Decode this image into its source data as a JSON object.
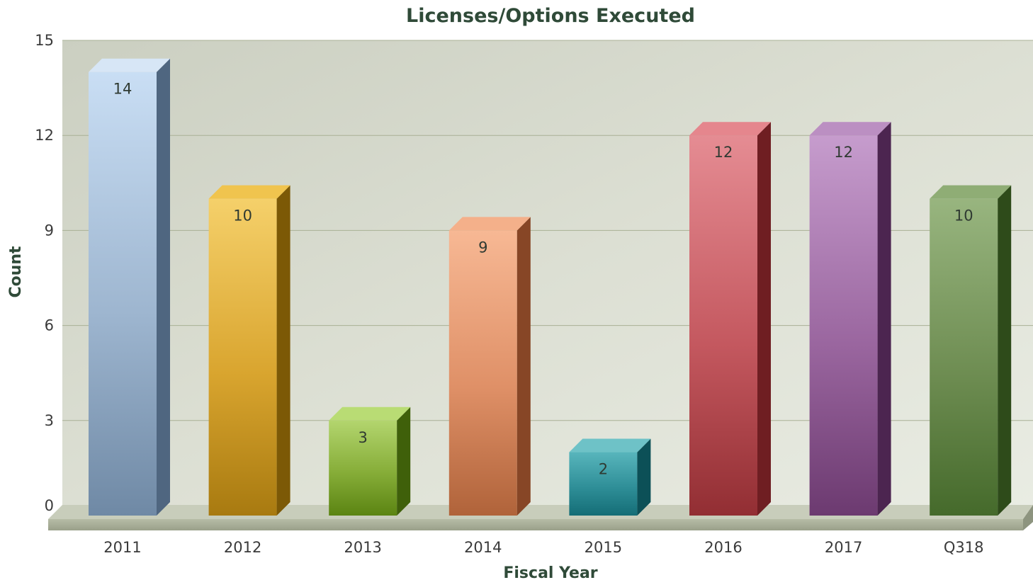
{
  "chart_data": {
    "type": "bar",
    "title": "Licenses/Options Executed",
    "xlabel": "Fiscal Year",
    "ylabel": "Count",
    "categories": [
      "2011",
      "2012",
      "2013",
      "2014",
      "2015",
      "2016",
      "2017",
      "Q318"
    ],
    "values": [
      14,
      10,
      3,
      9,
      2,
      12,
      12,
      10
    ],
    "data_labels": [
      "14",
      "10",
      "3",
      "9",
      "2",
      "12",
      "12",
      "10"
    ],
    "yticks": [
      "0",
      "3",
      "6",
      "9",
      "12",
      "15"
    ],
    "ylim": [
      0,
      15
    ],
    "grid": true,
    "legend": "none",
    "style": "3d-column",
    "colors": [
      {
        "light": "#c9def4",
        "mid": "#9db5cf",
        "dark": "#6f89a5",
        "side": "#4f6680",
        "top": "#d7e6f6"
      },
      {
        "light": "#f5d06a",
        "mid": "#d9a52f",
        "dark": "#a87a10",
        "side": "#7c5906",
        "top": "#f0c44e"
      },
      {
        "light": "#b3d56e",
        "mid": "#86ad38",
        "dark": "#5b8412",
        "side": "#3f600a",
        "top": "#b9dc74"
      },
      {
        "light": "#f7b894",
        "mid": "#df9067",
        "dark": "#b0633a",
        "side": "#874626",
        "top": "#f4b08a"
      },
      {
        "light": "#58b5bc",
        "mid": "#2f8f98",
        "dark": "#146d76",
        "side": "#0c5057",
        "top": "#6ec2c7"
      },
      {
        "light": "#e58c93",
        "mid": "#c4585f",
        "dark": "#922e33",
        "side": "#6f1e22",
        "top": "#e5868d"
      },
      {
        "light": "#c69ccd",
        "mid": "#9a669f",
        "dark": "#6c3a70",
        "side": "#4c2550",
        "top": "#bb8fc2"
      },
      {
        "light": "#98b57f",
        "mid": "#6e8d52",
        "dark": "#456a2b",
        "side": "#2e4b1a",
        "top": "#8fad75"
      }
    ]
  }
}
